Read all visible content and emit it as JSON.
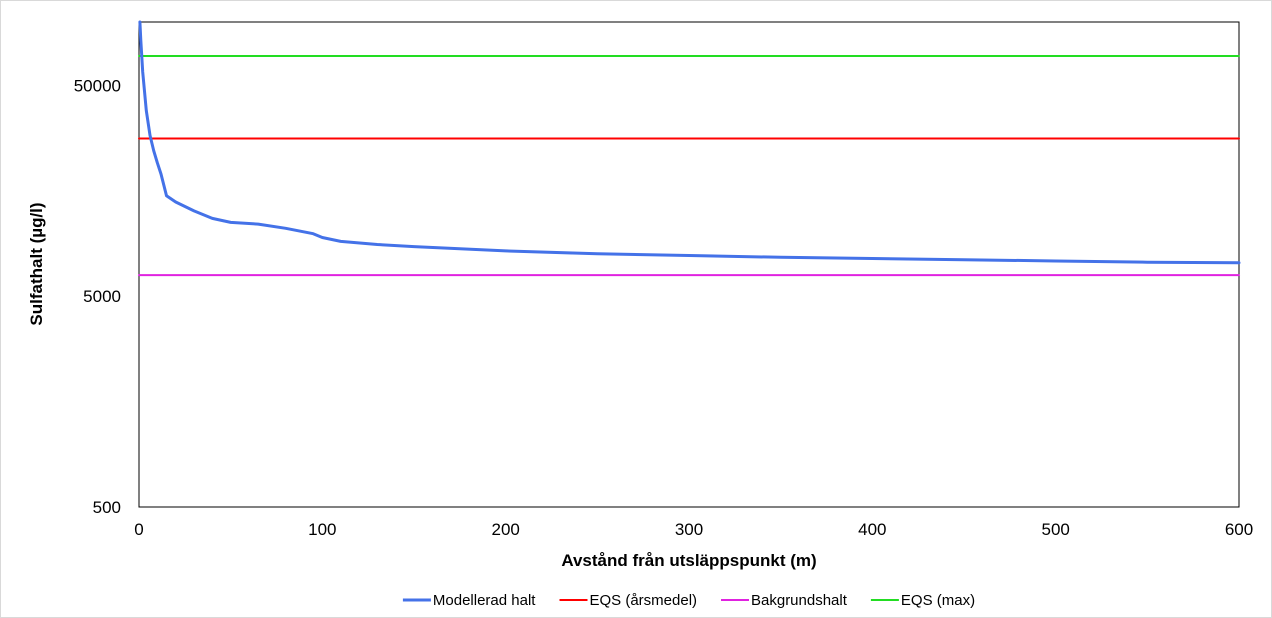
{
  "chart_data": {
    "type": "line",
    "title": "",
    "xlabel": "Avstånd från utsläppspunkt (m)",
    "ylabel": "Sulfathalt (µg/l)",
    "xlim": [
      0,
      600
    ],
    "ylim": [
      500,
      100000
    ],
    "yscale": "log",
    "x_ticks": [
      "0",
      "100",
      "200",
      "300",
      "400",
      "500",
      "600"
    ],
    "y_ticks": [
      "500",
      "5000",
      "50000"
    ],
    "grid": false,
    "legend_position": "bottom",
    "series": [
      {
        "name": "Modellerad halt",
        "color": "#4472e8",
        "width": 3,
        "points": [
          [
            0.5,
            100000
          ],
          [
            1,
            82000
          ],
          [
            2,
            58000
          ],
          [
            4,
            38000
          ],
          [
            6,
            29000
          ],
          [
            8,
            24500
          ],
          [
            10,
            21500
          ],
          [
            12,
            19000
          ],
          [
            15,
            15000
          ],
          [
            20,
            14000
          ],
          [
            30,
            12700
          ],
          [
            40,
            11700
          ],
          [
            50,
            11200
          ],
          [
            65,
            11000
          ],
          [
            80,
            10500
          ],
          [
            95,
            9900
          ],
          [
            100,
            9500
          ],
          [
            110,
            9100
          ],
          [
            130,
            8800
          ],
          [
            150,
            8600
          ],
          [
            200,
            8200
          ],
          [
            250,
            7950
          ],
          [
            300,
            7800
          ],
          [
            350,
            7650
          ],
          [
            400,
            7550
          ],
          [
            450,
            7450
          ],
          [
            500,
            7350
          ],
          [
            550,
            7250
          ],
          [
            600,
            7200
          ]
        ]
      },
      {
        "name": "EQS (årsmedel)",
        "color": "#ff0000",
        "width": 2,
        "points": [
          [
            0,
            28000
          ],
          [
            600,
            28000
          ]
        ]
      },
      {
        "name": "Bakgrundshalt",
        "color": "#e022e0",
        "width": 2,
        "points": [
          [
            0,
            6300
          ],
          [
            600,
            6300
          ]
        ]
      },
      {
        "name": "EQS (max)",
        "color": "#22dd22",
        "width": 2,
        "points": [
          [
            0,
            69000
          ],
          [
            600,
            69000
          ]
        ]
      }
    ]
  }
}
